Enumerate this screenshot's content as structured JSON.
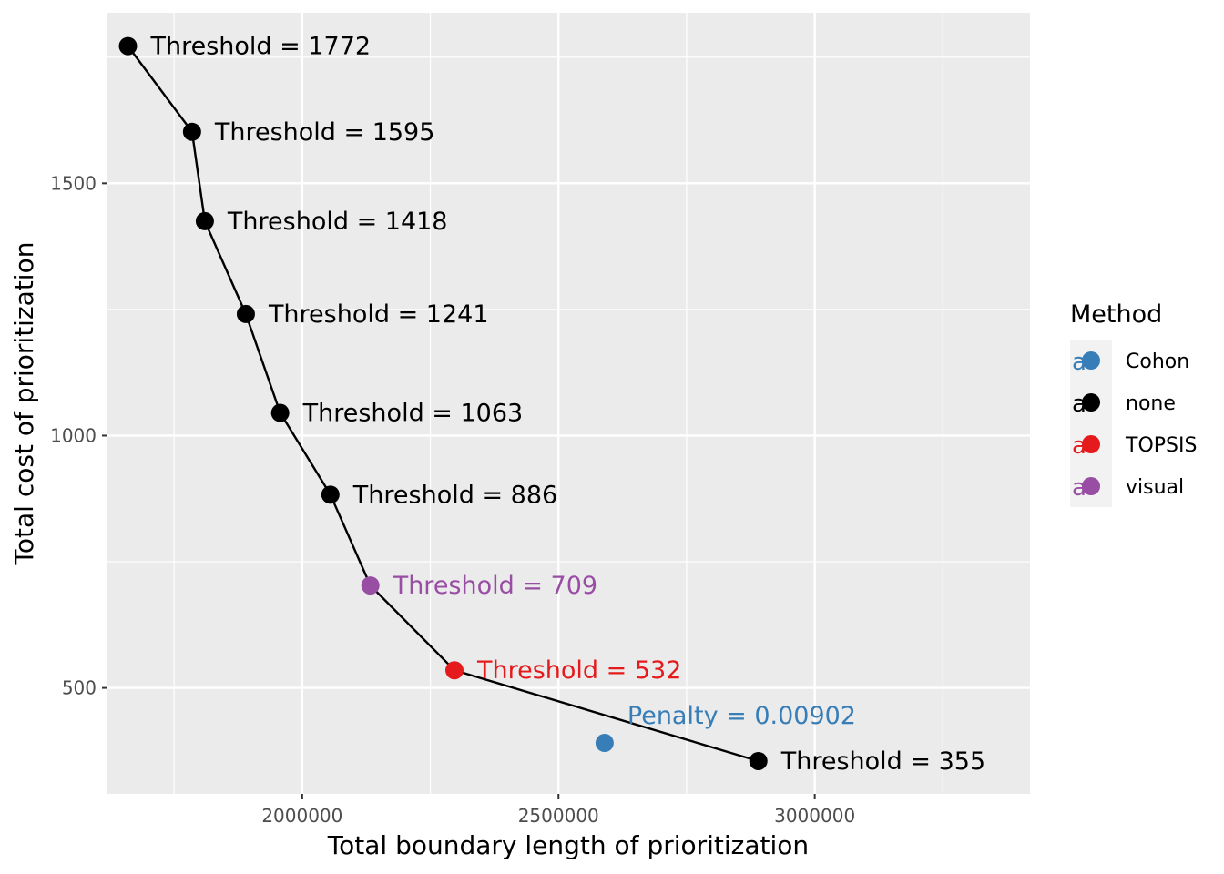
{
  "chart_data": {
    "type": "scatter",
    "xlabel": "Total boundary length of prioritization",
    "ylabel": "Total cost of prioritization",
    "xlim": [
      1620000,
      3420000
    ],
    "ylim": [
      290000,
      1838000
    ],
    "y_display_divisor": 1000,
    "x_ticks": [
      2000000,
      2500000,
      3000000
    ],
    "x_tick_labels": [
      "2000000",
      "2500000",
      "3000000"
    ],
    "x_minor_ticks": [
      1750000,
      2250000,
      2750000,
      3250000
    ],
    "y_ticks": [
      500,
      1000,
      1500
    ],
    "y_tick_labels": [
      "500",
      "1000",
      "1500"
    ],
    "y_minor_ticks": [
      750,
      1250,
      1750
    ],
    "grid": true,
    "line_series": [
      {
        "x": 1660000,
        "y": 1772
      },
      {
        "x": 1785000,
        "y": 1602
      },
      {
        "x": 1810000,
        "y": 1425
      },
      {
        "x": 1890000,
        "y": 1241
      },
      {
        "x": 1957000,
        "y": 1045
      },
      {
        "x": 2055000,
        "y": 883
      },
      {
        "x": 2133000,
        "y": 703
      },
      {
        "x": 2297000,
        "y": 535
      },
      {
        "x": 2890000,
        "y": 355
      }
    ],
    "points": [
      {
        "x": 1660000,
        "y": 1772,
        "method": "none",
        "label": "Threshold = 1772"
      },
      {
        "x": 1785000,
        "y": 1602,
        "method": "none",
        "label": "Threshold = 1595"
      },
      {
        "x": 1810000,
        "y": 1425,
        "method": "none",
        "label": "Threshold = 1418"
      },
      {
        "x": 1890000,
        "y": 1241,
        "method": "none",
        "label": "Threshold = 1241"
      },
      {
        "x": 1957000,
        "y": 1045,
        "method": "none",
        "label": "Threshold = 1063"
      },
      {
        "x": 2055000,
        "y": 883,
        "method": "none",
        "label": "Threshold = 886"
      },
      {
        "x": 2133000,
        "y": 703,
        "method": "visual",
        "label": "Threshold = 709"
      },
      {
        "x": 2297000,
        "y": 535,
        "method": "TOPSIS",
        "label": "Threshold = 532"
      },
      {
        "x": 2590000,
        "y": 391,
        "method": "Cohon",
        "label": "Penalty = 0.00902",
        "label_above": true
      },
      {
        "x": 2890000,
        "y": 355,
        "method": "none",
        "label": "Threshold = 355"
      }
    ],
    "legend": {
      "title": "Method",
      "placement": "right",
      "key_glyph": "a",
      "items": [
        {
          "name": "Cohon",
          "color": "#377eb8"
        },
        {
          "name": "none",
          "color": "#000000"
        },
        {
          "name": "TOPSIS",
          "color": "#e41a1c"
        },
        {
          "name": "visual",
          "color": "#984ea3"
        }
      ]
    },
    "colors": {
      "Cohon": "#377eb8",
      "none": "#000000",
      "TOPSIS": "#e41a1c",
      "visual": "#984ea3",
      "panel_background": "#ebebeb",
      "grid": "#ffffff"
    }
  }
}
